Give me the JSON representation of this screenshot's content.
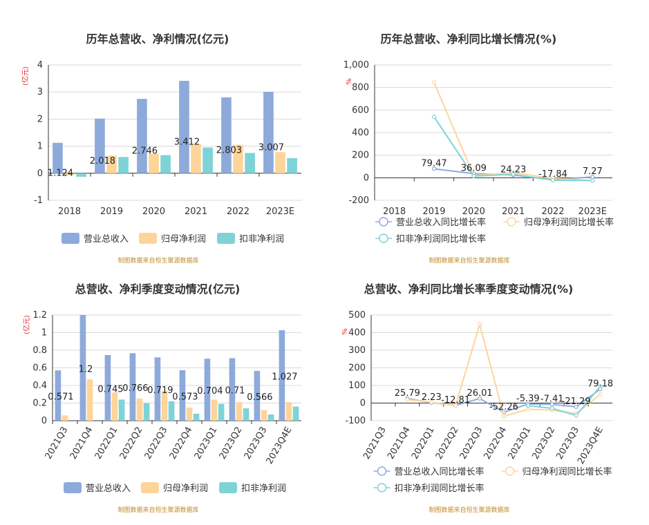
{
  "colors": {
    "revenue": "#8eaadb",
    "parent_profit": "#fdd59a",
    "deducted_profit": "#7ed3d7",
    "grid": "#d9d9d9",
    "axis": "#333333",
    "source_text": "#c08a2a",
    "unit_text": "#e0262a"
  },
  "chart_data": [
    {
      "type": "bar",
      "title": "历年总营收、净利情况(亿元)",
      "unit": "(亿元)",
      "categories": [
        "2018",
        "2019",
        "2020",
        "2021",
        "2022",
        "2023E"
      ],
      "series": [
        {
          "name": "营业总收入",
          "values": [
            1.124,
            2.018,
            2.746,
            3.412,
            2.803,
            3.007
          ]
        },
        {
          "name": "归母净利润",
          "values": [
            -0.08,
            0.65,
            0.72,
            1.08,
            1.05,
            0.78
          ]
        },
        {
          "name": "扣非净利润",
          "values": [
            -0.13,
            0.6,
            0.67,
            0.95,
            0.75,
            0.56
          ]
        }
      ],
      "data_labels": [
        "1.124",
        "2.018",
        "2.746",
        "3.412",
        "2.803",
        "3.007"
      ],
      "yticks": [
        "4",
        "3",
        "2",
        "1",
        "0",
        "-1"
      ],
      "ylim": [
        -1,
        4
      ],
      "grid": true,
      "legend_position": "bottom",
      "source": "制图数据来自恒生聚源数据库"
    },
    {
      "type": "line",
      "title": "历年总营收、净利同比增长情况(%)",
      "unit": "%",
      "categories": [
        "2018",
        "2019",
        "2020",
        "2021",
        "2022",
        "2023E"
      ],
      "series": [
        {
          "name": "营业总收入同比增长率",
          "values": [
            null,
            79.47,
            36.09,
            24.23,
            -17.84,
            7.27
          ]
        },
        {
          "name": "归母净利润同比增长率",
          "values": [
            null,
            845,
            20,
            45,
            -5,
            -25
          ]
        },
        {
          "name": "扣非净利润同比增长率",
          "values": [
            null,
            540,
            15,
            30,
            -22,
            -25
          ]
        }
      ],
      "data_labels": [
        "",
        "79.47",
        "36.09",
        "24.23",
        "-17.84",
        "7.27"
      ],
      "yticks": [
        "1,000",
        "800",
        "600",
        "400",
        "200",
        "0",
        "-200"
      ],
      "ylim": [
        -200,
        1000
      ],
      "grid": true,
      "legend_position": "bottom",
      "source": "制图数据来自恒生聚源数据库"
    },
    {
      "type": "bar",
      "title": "总营收、净利季度变动情况(亿元)",
      "unit": "(亿元)",
      "categories": [
        "2021Q3",
        "2021Q4",
        "2022Q1",
        "2022Q2",
        "2022Q3",
        "2022Q4",
        "2023Q1",
        "2023Q2",
        "2023Q3",
        "2023Q4E"
      ],
      "series": [
        {
          "name": "营业总收入",
          "values": [
            0.571,
            1.2,
            0.745,
            0.766,
            0.719,
            0.573,
            0.704,
            0.71,
            0.566,
            1.027
          ]
        },
        {
          "name": "归母净利润",
          "values": [
            0.06,
            0.47,
            0.32,
            0.25,
            0.34,
            0.15,
            0.24,
            0.21,
            0.12,
            0.21
          ]
        },
        {
          "name": "扣非净利润",
          "values": [
            0.0,
            0.0,
            0.24,
            0.2,
            0.22,
            0.08,
            0.19,
            0.14,
            0.07,
            0.16
          ]
        }
      ],
      "data_labels": [
        "0.571",
        "1.2",
        "0.745",
        "0.766",
        "0.719",
        "0.573",
        "0.704",
        "0.71",
        "0.566",
        "1.027"
      ],
      "yticks": [
        "1.2",
        "1",
        "0.8",
        "0.6",
        "0.4",
        "0.2",
        "0"
      ],
      "ylim": [
        0,
        1.2
      ],
      "grid": true,
      "legend_position": "bottom",
      "source": "制图数据来自恒生聚源数据库"
    },
    {
      "type": "line",
      "title": "总营收、净利同比增长率季度变动情况(%)",
      "unit": "%",
      "categories": [
        "2021Q3",
        "2021Q4",
        "2022Q1",
        "2022Q2",
        "2022Q3",
        "2022Q4",
        "2023Q1",
        "2023Q2",
        "2023Q3",
        "2023Q4E"
      ],
      "series": [
        {
          "name": "营业总收入同比增长率",
          "values": [
            null,
            25.79,
            2.23,
            -12.81,
            26.01,
            -52.26,
            -5.39,
            -7.41,
            -21.29,
            79.18
          ]
        },
        {
          "name": "归母净利润同比增长率",
          "values": [
            null,
            20,
            5,
            -15,
            448,
            -75,
            -35,
            -40,
            -60,
            50
          ]
        },
        {
          "name": "扣非净利润同比增长率",
          "values": [
            null,
            null,
            null,
            null,
            null,
            null,
            -15,
            -30,
            -70,
            95
          ]
        }
      ],
      "data_labels": [
        "",
        "25.79",
        "2.23",
        "-12.81",
        "26.01",
        "-52.26",
        "-5.39",
        "-7.41",
        "-21.29",
        "79.18"
      ],
      "yticks": [
        "500",
        "400",
        "300",
        "200",
        "100",
        "0",
        "-100"
      ],
      "ylim": [
        -100,
        500
      ],
      "grid": true,
      "legend_position": "bottom",
      "source": "制图数据来自恒生聚源数据库"
    }
  ]
}
